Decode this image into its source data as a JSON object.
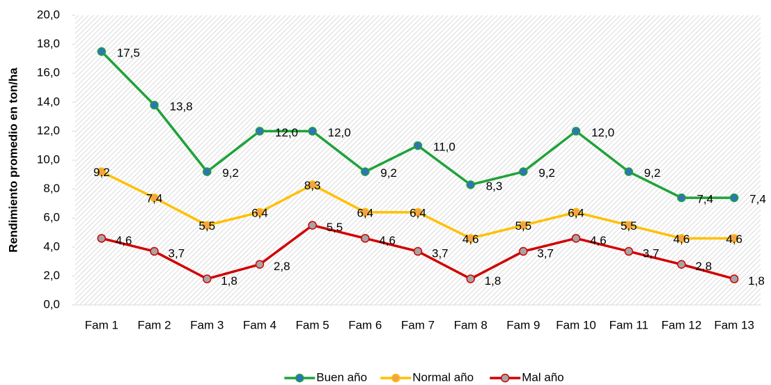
{
  "chart_data": {
    "type": "line",
    "y_label": "Rendimiento promedio en ton/ha",
    "categories": [
      "Fam 1",
      "Fam 2",
      "Fam 3",
      "Fam 4",
      "Fam 5",
      "Fam 6",
      "Fam 7",
      "Fam 8",
      "Fam 9",
      "Fam 10",
      "Fam 11",
      "Fam 12",
      "Fam 13"
    ],
    "series": [
      {
        "name": "Buen año",
        "color": "#1fa23a",
        "marker_color": "#2e75b6",
        "values": [
          17.5,
          13.8,
          9.2,
          12.0,
          12.0,
          9.2,
          11.0,
          8.3,
          9.2,
          12.0,
          9.2,
          7.4,
          7.4
        ],
        "value_labels": [
          "17,5",
          "13,8",
          "9,2",
          "12,0",
          "12,0",
          "9,2",
          "11,0",
          "8,3",
          "9,2",
          "12,0",
          "9,2",
          "7,4",
          "7,4"
        ]
      },
      {
        "name": "Normal año",
        "color": "#ffc000",
        "marker_color": "#f4a24a",
        "values": [
          9.2,
          7.4,
          5.5,
          6.4,
          8.3,
          6.4,
          6.4,
          4.6,
          5.5,
          6.4,
          5.5,
          4.6,
          4.6
        ],
        "value_labels": [
          "9,2",
          "7,4",
          "5,5",
          "6,4",
          "8,3",
          "6,4",
          "6,4",
          "4,6",
          "5,5",
          "6,4",
          "5,5",
          "4,6",
          "4,6"
        ]
      },
      {
        "name": "Mal año",
        "color": "#d00000",
        "marker_color": "#a5a5a5",
        "values": [
          4.6,
          3.7,
          1.8,
          2.8,
          5.5,
          4.6,
          3.7,
          1.8,
          3.7,
          4.6,
          3.7,
          2.8,
          1.8
        ],
        "value_labels": [
          "4,6",
          "3,7",
          "1,8",
          "2,8",
          "5,5",
          "4,6",
          "3,7",
          "1,8",
          "3,7",
          "4,6",
          "3,7",
          "2,8",
          "1,8"
        ]
      }
    ],
    "ylim": [
      0,
      20
    ],
    "yticks": [
      {
        "value": 0,
        "label": "0,0"
      },
      {
        "value": 2,
        "label": "2,0"
      },
      {
        "value": 4,
        "label": "4,0"
      },
      {
        "value": 6,
        "label": "6,0"
      },
      {
        "value": 8,
        "label": "8,0"
      },
      {
        "value": 10,
        "label": "10,0"
      },
      {
        "value": 12,
        "label": "12,0"
      },
      {
        "value": 14,
        "label": "14,0"
      },
      {
        "value": 16,
        "label": "16,0"
      },
      {
        "value": 18,
        "label": "18,0"
      },
      {
        "value": 20,
        "label": "20,0"
      }
    ],
    "grid": false,
    "legend": "bottom"
  }
}
